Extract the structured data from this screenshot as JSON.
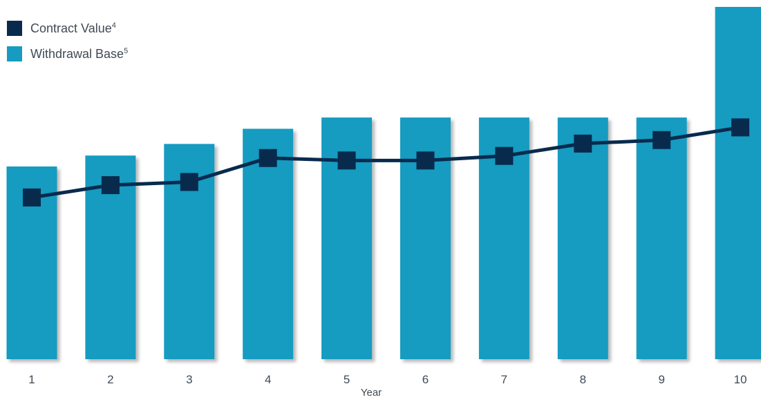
{
  "chart_data": {
    "type": "bar",
    "categories": [
      "1",
      "2",
      "3",
      "4",
      "5",
      "6",
      "7",
      "8",
      "9",
      "10"
    ],
    "xlabel": "Year",
    "ylabel": "",
    "ylim": [
      0,
      100
    ],
    "grid": false,
    "legend_placement": "top-left",
    "series": [
      {
        "name": "Withdrawal Base",
        "footnote": "5",
        "kind": "bar",
        "color": "#179bc1",
        "values": [
          54.7,
          57.8,
          61.1,
          65.4,
          68.6,
          68.6,
          68.6,
          68.6,
          68.6,
          100
        ]
      },
      {
        "name": "Contract Value",
        "footnote": "4",
        "kind": "line",
        "color": "#082b4d",
        "values": [
          45.9,
          49.4,
          50.3,
          57.1,
          56.4,
          56.4,
          57.7,
          61.2,
          62.2,
          65.8
        ]
      }
    ]
  }
}
